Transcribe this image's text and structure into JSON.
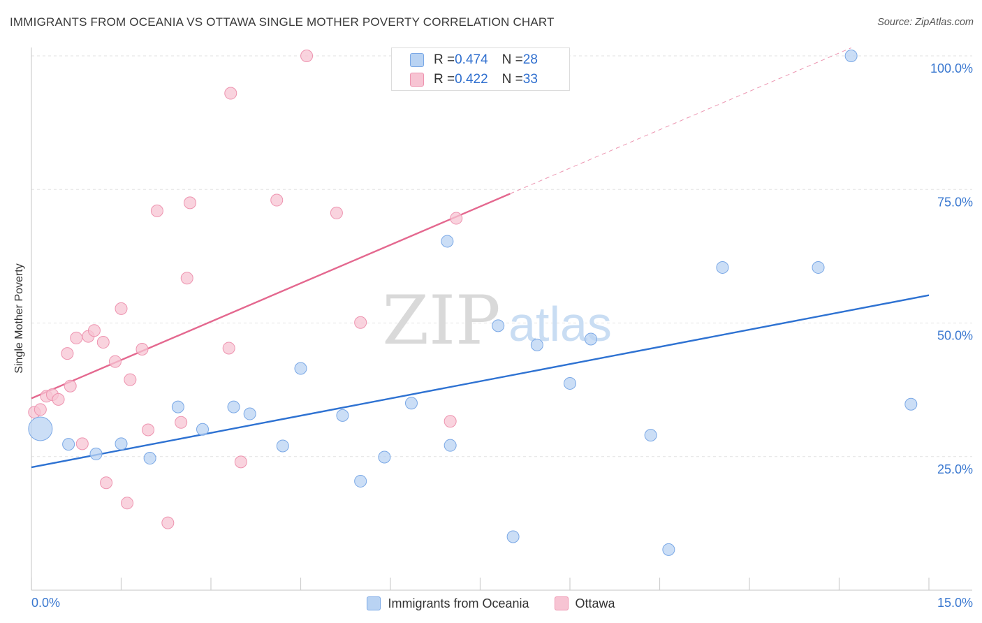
{
  "header": {
    "title": "IMMIGRANTS FROM OCEANIA VS OTTAWA SINGLE MOTHER POVERTY CORRELATION CHART",
    "source": "Source: ZipAtlas.com"
  },
  "watermark": {
    "zip": "ZIP",
    "atlas": "atlas"
  },
  "legend": {
    "r_label": "R = ",
    "n_label": "N = ",
    "rows": [
      {
        "r": "0.474",
        "n": "28"
      },
      {
        "r": "0.422",
        "n": "33"
      }
    ]
  },
  "colors": {
    "blue_fill": "#b9d3f3",
    "blue_stroke": "#7aa8e6",
    "blue_line": "#2e72d2",
    "pink_fill": "#f7c4d3",
    "pink_stroke": "#ee94b0",
    "pink_line": "#e4688f",
    "grid": "#e2e2e2",
    "tick_label": "#3a78d0"
  },
  "chart_data": {
    "type": "scatter",
    "title": "IMMIGRANTS FROM OCEANIA VS OTTAWA SINGLE MOTHER POVERTY CORRELATION CHART",
    "xlabel": "",
    "ylabel": "Single Mother Poverty",
    "xlim": [
      0,
      15
    ],
    "ylim": [
      0,
      100
    ],
    "x_tick_labels": [
      "0.0%",
      "15.0%"
    ],
    "y_ticks": [
      25,
      50,
      75,
      100
    ],
    "y_tick_labels": [
      "25.0%",
      "50.0%",
      "75.0%",
      "100.0%"
    ],
    "grid": true,
    "legend_position": "top-center",
    "series": [
      {
        "name": "Immigrants from Oceania",
        "color": "#b9d3f3",
        "r": 0.474,
        "n": 28,
        "trend": {
          "x": [
            0,
            15
          ],
          "y": [
            23.0,
            55.2
          ],
          "dashed_extension": false
        },
        "points": [
          {
            "x": 0.15,
            "y": 30.2,
            "big": true
          },
          {
            "x": 0.62,
            "y": 27.3
          },
          {
            "x": 1.08,
            "y": 25.5
          },
          {
            "x": 1.5,
            "y": 27.4
          },
          {
            "x": 1.98,
            "y": 24.7
          },
          {
            "x": 2.45,
            "y": 34.3
          },
          {
            "x": 2.86,
            "y": 30.1
          },
          {
            "x": 3.38,
            "y": 34.3
          },
          {
            "x": 3.65,
            "y": 33.0
          },
          {
            "x": 4.2,
            "y": 27.0
          },
          {
            "x": 4.5,
            "y": 41.5
          },
          {
            "x": 5.2,
            "y": 32.7
          },
          {
            "x": 5.5,
            "y": 20.4
          },
          {
            "x": 5.9,
            "y": 24.9
          },
          {
            "x": 6.35,
            "y": 35.0
          },
          {
            "x": 6.95,
            "y": 65.3
          },
          {
            "x": 7.0,
            "y": 27.1
          },
          {
            "x": 7.8,
            "y": 49.5
          },
          {
            "x": 8.05,
            "y": 10.0
          },
          {
            "x": 8.45,
            "y": 45.9
          },
          {
            "x": 9.0,
            "y": 38.7
          },
          {
            "x": 9.35,
            "y": 47.0
          },
          {
            "x": 10.35,
            "y": 29.0
          },
          {
            "x": 10.65,
            "y": 7.6
          },
          {
            "x": 11.55,
            "y": 60.4
          },
          {
            "x": 13.15,
            "y": 60.4
          },
          {
            "x": 13.7,
            "y": 100.0
          },
          {
            "x": 14.7,
            "y": 34.8
          }
        ]
      },
      {
        "name": "Ottawa",
        "color": "#f7c4d3",
        "r": 0.422,
        "n": 33,
        "trend": {
          "x": [
            0,
            8.0
          ],
          "y": [
            35.9,
            74.2
          ],
          "dashed_to": [
            13.7,
            101.5
          ]
        },
        "points": [
          {
            "x": 0.05,
            "y": 33.3
          },
          {
            "x": 0.15,
            "y": 33.8
          },
          {
            "x": 0.25,
            "y": 36.3
          },
          {
            "x": 0.35,
            "y": 36.6
          },
          {
            "x": 0.45,
            "y": 35.7
          },
          {
            "x": 0.6,
            "y": 44.3
          },
          {
            "x": 0.65,
            "y": 38.2
          },
          {
            "x": 0.75,
            "y": 47.2
          },
          {
            "x": 0.85,
            "y": 27.4
          },
          {
            "x": 0.95,
            "y": 47.5
          },
          {
            "x": 1.05,
            "y": 48.6
          },
          {
            "x": 1.2,
            "y": 46.4
          },
          {
            "x": 1.25,
            "y": 20.1
          },
          {
            "x": 1.4,
            "y": 42.8
          },
          {
            "x": 1.5,
            "y": 52.7
          },
          {
            "x": 1.6,
            "y": 16.3
          },
          {
            "x": 1.65,
            "y": 39.4
          },
          {
            "x": 1.85,
            "y": 45.1
          },
          {
            "x": 1.95,
            "y": 30.0
          },
          {
            "x": 2.1,
            "y": 71.0
          },
          {
            "x": 2.28,
            "y": 12.6
          },
          {
            "x": 2.5,
            "y": 31.4
          },
          {
            "x": 2.6,
            "y": 58.4
          },
          {
            "x": 2.65,
            "y": 72.5
          },
          {
            "x": 3.3,
            "y": 45.3
          },
          {
            "x": 3.33,
            "y": 93.0
          },
          {
            "x": 3.5,
            "y": 24.0
          },
          {
            "x": 4.1,
            "y": 73.0
          },
          {
            "x": 4.6,
            "y": 100.0
          },
          {
            "x": 5.1,
            "y": 70.6
          },
          {
            "x": 5.5,
            "y": 50.1
          },
          {
            "x": 7.1,
            "y": 69.6
          },
          {
            "x": 7.0,
            "y": 31.6
          }
        ]
      }
    ]
  }
}
